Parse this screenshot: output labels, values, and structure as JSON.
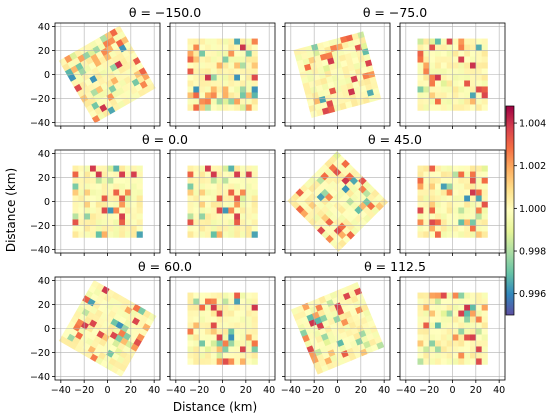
{
  "figure": {
    "xlabel": "Distance (km)",
    "ylabel": "Distance (km)"
  },
  "chart_data": {
    "type": "heatmap",
    "grid": true,
    "layout": "3 rows x 4 panels; each row has two angle groups (left pair, right pair), each pair = two panels",
    "xlim": [
      -45,
      45
    ],
    "ylim": [
      -43,
      43
    ],
    "xticks": [
      -40,
      -20,
      0,
      20,
      40
    ],
    "yticks": [
      -40,
      -20,
      0,
      20,
      40
    ],
    "colorbar": {
      "vmin": 0.995,
      "vmax": 1.0048,
      "ticks": [
        0.996,
        0.998,
        1.0,
        1.002,
        1.004
      ],
      "tick_labels": [
        "0.996",
        "0.998",
        "1.000",
        "1.002",
        "1.004"
      ],
      "colormap": "Spectral_r"
    },
    "groups": [
      {
        "title": "θ = −150.0",
        "theta": -150.0,
        "row": 0,
        "col_pair": 0
      },
      {
        "title": "θ = −75.0",
        "theta": -75.0,
        "row": 0,
        "col_pair": 1
      },
      {
        "title": "θ = 0.0",
        "theta": 0.0,
        "row": 1,
        "col_pair": 0
      },
      {
        "title": "θ = 45.0",
        "theta": 45.0,
        "row": 1,
        "col_pair": 1
      },
      {
        "title": "θ = 60.0",
        "theta": 60.0,
        "row": 2,
        "col_pair": 0
      },
      {
        "title": "θ = 112.5",
        "theta": 112.5,
        "row": 2,
        "col_pair": 1
      }
    ],
    "field": {
      "extent": [
        -30,
        30
      ],
      "cells": 12,
      "baseline": 1.0,
      "note": "square field of cells at values near 1.000 with scattered anomalies (approx. 0.9955 to 1.0045); left panel of each pair rotated by theta, right panel unrotated/resampled"
    }
  },
  "colors": {
    "axis": "#000000",
    "grid": "#b0b0b0"
  }
}
